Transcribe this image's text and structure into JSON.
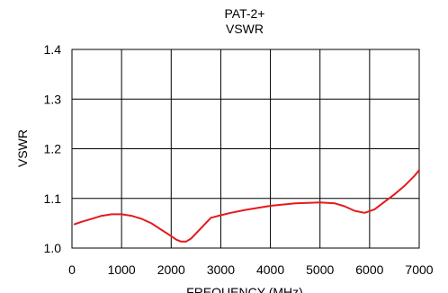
{
  "chart_data": {
    "type": "line",
    "title": "PAT-2+",
    "subtitle": "VSWR",
    "xlabel": "FREQUENCY (MHz)",
    "ylabel": "VSWR",
    "xlim": [
      0,
      7000
    ],
    "ylim": [
      1.0,
      1.4
    ],
    "x_ticks": [
      0,
      1000,
      2000,
      3000,
      4000,
      5000,
      6000,
      7000
    ],
    "x_tick_labels": [
      "0",
      "1000",
      "2000",
      "3000",
      "4000",
      "5000",
      "6000",
      "7000"
    ],
    "y_ticks": [
      1.0,
      1.1,
      1.2,
      1.3,
      1.4
    ],
    "y_tick_labels": [
      "1.0",
      "1.1",
      "1.2",
      "1.3",
      "1.4"
    ],
    "grid": true,
    "legend": "none",
    "series": [
      {
        "color": "#e41a1c",
        "x": [
          50,
          200,
          400,
          600,
          800,
          1000,
          1200,
          1400,
          1600,
          1800,
          2000,
          2100,
          2200,
          2300,
          2400,
          2600,
          2800,
          3000,
          3200,
          3500,
          4000,
          4500,
          5000,
          5300,
          5500,
          5700,
          5900,
          6100,
          6300,
          6500,
          6700,
          6900,
          7000
        ],
        "y": [
          1.048,
          1.053,
          1.059,
          1.065,
          1.068,
          1.068,
          1.065,
          1.059,
          1.05,
          1.037,
          1.024,
          1.017,
          1.013,
          1.013,
          1.019,
          1.04,
          1.061,
          1.066,
          1.071,
          1.077,
          1.085,
          1.09,
          1.092,
          1.09,
          1.084,
          1.075,
          1.071,
          1.078,
          1.093,
          1.108,
          1.125,
          1.145,
          1.157
        ]
      }
    ]
  }
}
